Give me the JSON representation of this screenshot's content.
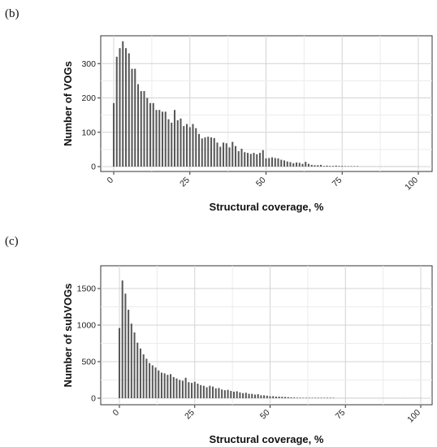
{
  "chart_data": [
    {
      "type": "bar",
      "panel_label": "(b)",
      "xlabel": "Structural coverage, %",
      "ylabel": "Number of VOGs",
      "xlim": [
        0,
        100
      ],
      "ylim": [
        0,
        400
      ],
      "xticks": [
        "0",
        "25",
        "50",
        "75",
        "100"
      ],
      "yticks": [
        "0",
        "100",
        "200",
        "300"
      ],
      "grid": true,
      "bar_color": "#595959",
      "x": [
        0,
        1,
        2,
        3,
        4,
        5,
        6,
        7,
        8,
        9,
        10,
        11,
        12,
        13,
        14,
        15,
        16,
        17,
        18,
        19,
        20,
        21,
        22,
        23,
        24,
        25,
        26,
        27,
        28,
        29,
        30,
        31,
        32,
        33,
        34,
        35,
        36,
        37,
        38,
        39,
        40,
        41,
        42,
        43,
        44,
        45,
        46,
        47,
        48,
        49,
        50,
        51,
        52,
        53,
        54,
        55,
        56,
        57,
        58,
        59,
        60,
        61,
        62,
        63,
        64,
        65,
        66,
        67,
        68,
        69,
        70,
        71,
        72,
        73,
        74,
        75,
        76,
        77,
        78,
        79,
        80,
        81,
        82,
        83,
        84,
        85,
        86,
        87,
        88,
        89,
        90,
        91,
        92,
        93,
        94,
        95,
        96,
        97,
        98,
        99,
        100
      ],
      "values": [
        185,
        320,
        345,
        365,
        345,
        330,
        285,
        285,
        240,
        220,
        220,
        200,
        185,
        185,
        165,
        165,
        160,
        160,
        138,
        128,
        165,
        135,
        140,
        118,
        124,
        115,
        124,
        112,
        95,
        82,
        85,
        87,
        85,
        83,
        70,
        58,
        70,
        68,
        56,
        72,
        60,
        45,
        52,
        42,
        40,
        37,
        40,
        36,
        40,
        48,
        24,
        25,
        27,
        25,
        24,
        20,
        18,
        15,
        13,
        10,
        12,
        11,
        8,
        14,
        8,
        5,
        4,
        4,
        5,
        2,
        3,
        2,
        2,
        3,
        2,
        2,
        1,
        1,
        1,
        1,
        1,
        0,
        0,
        0,
        0,
        0,
        0,
        0,
        0,
        0,
        0,
        0,
        0,
        0,
        0,
        0,
        0,
        0,
        0,
        0,
        0
      ]
    },
    {
      "type": "bar",
      "panel_label": "(c)",
      "xlabel": "Structural coverage, %",
      "ylabel": "Number of subVOGs",
      "xlim": [
        0,
        100
      ],
      "ylim": [
        0,
        1700
      ],
      "xticks": [
        "0",
        "25",
        "50",
        "75",
        "100"
      ],
      "yticks": [
        "0",
        "500",
        "1000",
        "1500"
      ],
      "grid": true,
      "bar_color": "#595959",
      "x": [
        0,
        1,
        2,
        3,
        4,
        5,
        6,
        7,
        8,
        9,
        10,
        11,
        12,
        13,
        14,
        15,
        16,
        17,
        18,
        19,
        20,
        21,
        22,
        23,
        24,
        25,
        26,
        27,
        28,
        29,
        30,
        31,
        32,
        33,
        34,
        35,
        36,
        37,
        38,
        39,
        40,
        41,
        42,
        43,
        44,
        45,
        46,
        47,
        48,
        49,
        50,
        51,
        52,
        53,
        54,
        55,
        56,
        57,
        58,
        59,
        60,
        61,
        62,
        63,
        64,
        65,
        66,
        67,
        68,
        69,
        70,
        71,
        72,
        73,
        74,
        75,
        76,
        77,
        78,
        79,
        80,
        81,
        82,
        83,
        84,
        85,
        86,
        87,
        88,
        89,
        90,
        91,
        92,
        93,
        94,
        95,
        96,
        97,
        98,
        99,
        100
      ],
      "values": [
        960,
        1610,
        1430,
        1210,
        1020,
        900,
        760,
        680,
        600,
        540,
        480,
        450,
        420,
        380,
        350,
        340,
        320,
        330,
        290,
        270,
        250,
        240,
        280,
        220,
        210,
        225,
        200,
        180,
        170,
        150,
        170,
        160,
        135,
        140,
        120,
        110,
        115,
        100,
        90,
        95,
        80,
        70,
        75,
        60,
        60,
        50,
        55,
        40,
        40,
        35,
        28,
        28,
        22,
        22,
        20,
        18,
        15,
        12,
        10,
        8,
        8,
        5,
        4,
        3,
        2,
        2,
        2,
        1,
        1,
        1,
        1,
        1,
        0,
        0,
        0,
        0,
        0,
        0,
        0,
        0,
        0,
        0,
        0,
        0,
        0,
        0,
        0,
        0,
        0,
        0,
        0,
        0,
        0,
        0,
        0,
        0,
        0,
        0,
        0,
        0,
        0
      ]
    }
  ]
}
